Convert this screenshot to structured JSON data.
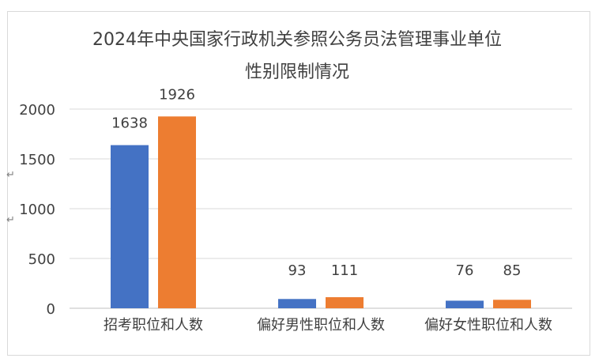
{
  "chart_data": {
    "type": "bar",
    "title_lines": [
      "2024年中央国家行政机关参照公务员法管理事业单位",
      "性别限制情况"
    ],
    "categories": [
      "招考职位和人数",
      "偏好男性职位和人数",
      "偏好女性职位和人数"
    ],
    "series": [
      {
        "values": [
          1638,
          93,
          76
        ],
        "color": "#4472c4"
      },
      {
        "values": [
          1926,
          111,
          85
        ],
        "color": "#ed7d31"
      }
    ],
    "yticks": [
      0,
      500,
      1000,
      1500,
      2000
    ],
    "ylim": [
      0,
      2000
    ],
    "grid": true,
    "legend": "none"
  }
}
